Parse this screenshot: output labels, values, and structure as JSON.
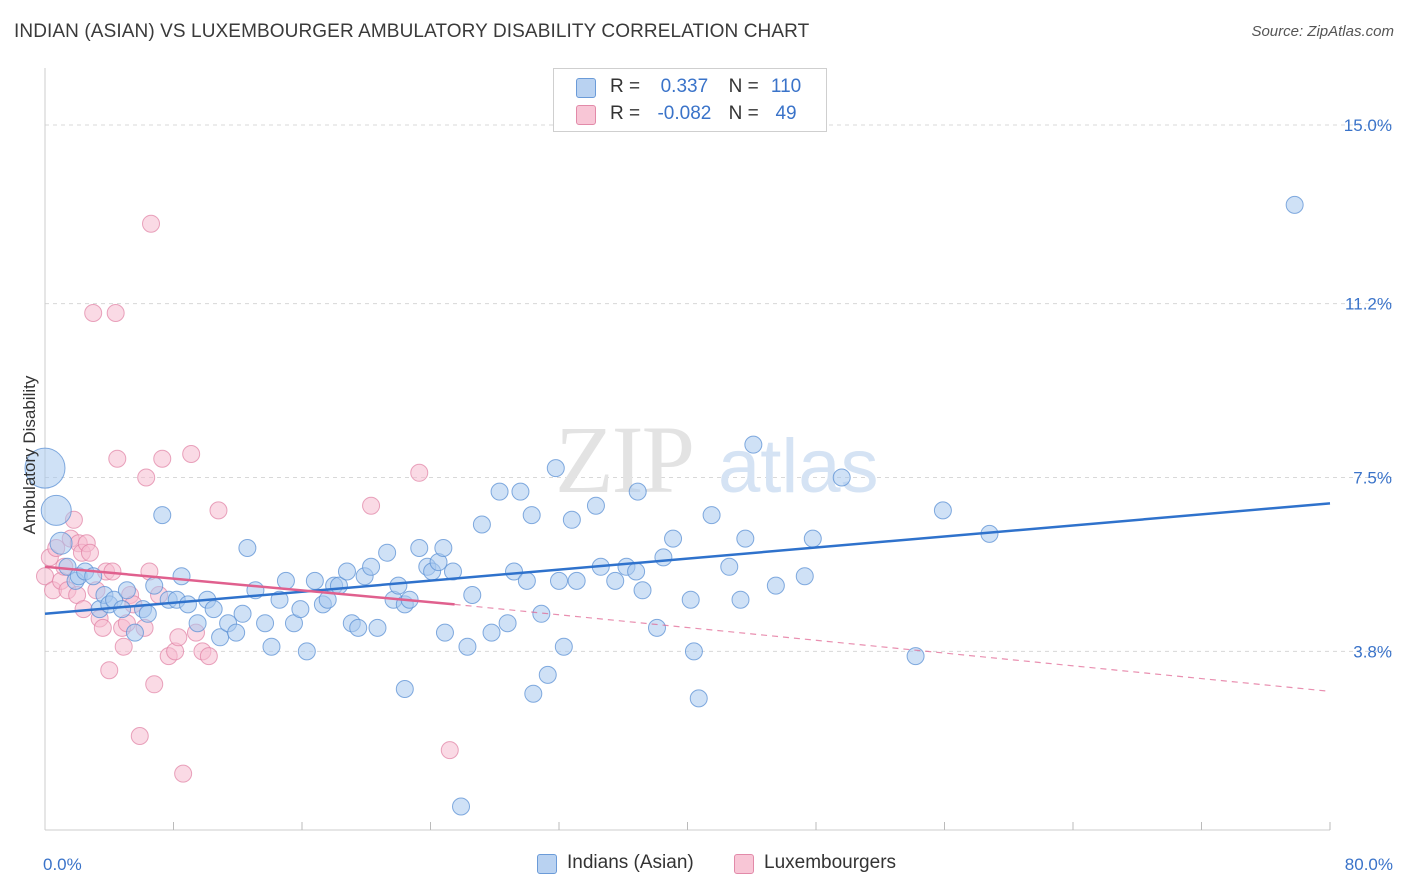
{
  "title": "INDIAN (ASIAN) VS LUXEMBOURGER AMBULATORY DISABILITY CORRELATION CHART",
  "source": "Source: ZipAtlas.com",
  "watermark": {
    "zip": "ZIP",
    "atlas": "atlas"
  },
  "legend": {
    "rows": [
      {
        "r_label": "R =",
        "r_value": "0.337",
        "n_label": "N =",
        "n_value": "110"
      },
      {
        "r_label": "R =",
        "r_value": "-0.082",
        "n_label": "N =",
        "n_value": "49"
      }
    ]
  },
  "bottom_legend": {
    "series1": "Indians (Asian)",
    "series2": "Luxembourgers"
  },
  "colors": {
    "blue_fill": "#a8c8ef",
    "blue_stroke": "#5b90d4",
    "blue_line": "#2f72cc",
    "pink_fill": "#f6bcd0",
    "pink_stroke": "#e07fa3",
    "pink_line": "#e0608e",
    "axis_text": "#3a73c9",
    "grid": "#d8d8d8"
  },
  "chart_data": {
    "type": "scatter",
    "title": "INDIAN (ASIAN) VS LUXEMBOURGER AMBULATORY DISABILITY CORRELATION CHART",
    "xlabel": "",
    "ylabel": "Ambulatory Disability",
    "xlim": [
      0,
      80
    ],
    "ylim": [
      0,
      16
    ],
    "x_tick_labels": [
      "0.0%",
      "80.0%"
    ],
    "y_ticks": [
      3.8,
      7.5,
      11.2,
      15.0
    ],
    "y_tick_labels": [
      "3.8%",
      "7.5%",
      "11.2%",
      "15.0%"
    ],
    "legend_position": "top-center",
    "series": [
      {
        "name": "Indians (Asian)",
        "r": 0.337,
        "n": 110,
        "trend": {
          "x0": 0,
          "y0": 4.6,
          "x1": 80,
          "y1": 6.95,
          "style": "solid"
        },
        "points": [
          [
            0,
            7.7
          ],
          [
            0.7,
            6.8
          ],
          [
            1.0,
            6.1
          ],
          [
            1.4,
            5.6
          ],
          [
            1.9,
            5.3
          ],
          [
            2.1,
            5.4
          ],
          [
            2.5,
            5.5
          ],
          [
            3.0,
            5.4
          ],
          [
            3.4,
            4.7
          ],
          [
            3.7,
            5.0
          ],
          [
            4.0,
            4.8
          ],
          [
            4.3,
            4.9
          ],
          [
            4.8,
            4.7
          ],
          [
            5.1,
            5.1
          ],
          [
            5.6,
            4.2
          ],
          [
            6.1,
            4.7
          ],
          [
            6.4,
            4.6
          ],
          [
            6.8,
            5.2
          ],
          [
            7.3,
            6.7
          ],
          [
            7.7,
            4.9
          ],
          [
            8.2,
            4.9
          ],
          [
            8.5,
            5.4
          ],
          [
            8.9,
            4.8
          ],
          [
            9.5,
            4.4
          ],
          [
            10.1,
            4.9
          ],
          [
            10.5,
            4.7
          ],
          [
            10.9,
            4.1
          ],
          [
            11.4,
            4.4
          ],
          [
            11.9,
            4.2
          ],
          [
            12.3,
            4.6
          ],
          [
            12.6,
            6.0
          ],
          [
            13.1,
            5.1
          ],
          [
            13.7,
            4.4
          ],
          [
            14.1,
            3.9
          ],
          [
            14.6,
            4.9
          ],
          [
            15.0,
            5.3
          ],
          [
            15.5,
            4.4
          ],
          [
            15.9,
            4.7
          ],
          [
            16.3,
            3.8
          ],
          [
            16.8,
            5.3
          ],
          [
            17.3,
            4.8
          ],
          [
            17.6,
            4.9
          ],
          [
            18.0,
            5.2
          ],
          [
            18.3,
            5.2
          ],
          [
            18.8,
            5.5
          ],
          [
            19.1,
            4.4
          ],
          [
            19.5,
            4.3
          ],
          [
            19.9,
            5.4
          ],
          [
            20.3,
            5.6
          ],
          [
            20.7,
            4.3
          ],
          [
            21.3,
            5.9
          ],
          [
            21.7,
            4.9
          ],
          [
            22.0,
            5.2
          ],
          [
            22.4,
            4.8
          ],
          [
            22.7,
            4.9
          ],
          [
            23.3,
            6.0
          ],
          [
            22.4,
            3.0
          ],
          [
            23.8,
            5.6
          ],
          [
            24.1,
            5.5
          ],
          [
            24.5,
            5.7
          ],
          [
            24.8,
            6.0
          ],
          [
            24.9,
            4.2
          ],
          [
            25.4,
            5.5
          ],
          [
            25.9,
            0.5
          ],
          [
            26.3,
            3.9
          ],
          [
            26.6,
            5.0
          ],
          [
            27.2,
            6.5
          ],
          [
            27.8,
            4.2
          ],
          [
            28.3,
            7.2
          ],
          [
            28.8,
            4.4
          ],
          [
            29.2,
            5.5
          ],
          [
            29.6,
            7.2
          ],
          [
            30.0,
            5.3
          ],
          [
            30.3,
            6.7
          ],
          [
            30.4,
            2.9
          ],
          [
            30.9,
            4.6
          ],
          [
            31.3,
            3.3
          ],
          [
            31.8,
            7.7
          ],
          [
            32.0,
            5.3
          ],
          [
            32.3,
            3.9
          ],
          [
            32.8,
            6.6
          ],
          [
            33.1,
            5.3
          ],
          [
            34.6,
            5.6
          ],
          [
            34.3,
            6.9
          ],
          [
            35.5,
            5.3
          ],
          [
            36.2,
            5.6
          ],
          [
            36.8,
            5.5
          ],
          [
            36.9,
            7.2
          ],
          [
            37.2,
            5.1
          ],
          [
            38.1,
            4.3
          ],
          [
            38.5,
            5.8
          ],
          [
            39.1,
            6.2
          ],
          [
            40.2,
            4.9
          ],
          [
            40.4,
            3.8
          ],
          [
            40.7,
            2.8
          ],
          [
            41.5,
            6.7
          ],
          [
            42.6,
            5.6
          ],
          [
            43.3,
            4.9
          ],
          [
            43.6,
            6.2
          ],
          [
            44.1,
            8.2
          ],
          [
            45.5,
            5.2
          ],
          [
            47.3,
            5.4
          ],
          [
            47.8,
            6.2
          ],
          [
            49.6,
            7.5
          ],
          [
            54.2,
            3.7
          ],
          [
            55.9,
            6.8
          ],
          [
            58.8,
            6.3
          ],
          [
            77.8,
            13.3
          ]
        ]
      },
      {
        "name": "Luxembourgers",
        "r": -0.082,
        "n": 49,
        "trend": {
          "x0": 0,
          "y0": 5.6,
          "x1": 25.5,
          "y1": 4.8,
          "style": "solid",
          "extension": {
            "x1": 80,
            "y1": 2.95,
            "style": "dashed"
          }
        },
        "points": [
          [
            0,
            5.4
          ],
          [
            0.3,
            5.8
          ],
          [
            0.5,
            5.1
          ],
          [
            0.7,
            6.0
          ],
          [
            1.0,
            5.3
          ],
          [
            1.2,
            5.6
          ],
          [
            1.4,
            5.1
          ],
          [
            1.6,
            6.2
          ],
          [
            1.8,
            6.6
          ],
          [
            2.0,
            5.0
          ],
          [
            2.1,
            6.1
          ],
          [
            2.3,
            5.9
          ],
          [
            2.4,
            4.7
          ],
          [
            2.6,
            6.1
          ],
          [
            2.8,
            5.9
          ],
          [
            3.0,
            11.0
          ],
          [
            3.2,
            5.1
          ],
          [
            3.4,
            4.5
          ],
          [
            3.6,
            4.3
          ],
          [
            3.8,
            5.5
          ],
          [
            4.0,
            3.4
          ],
          [
            4.2,
            5.5
          ],
          [
            4.4,
            11.0
          ],
          [
            4.5,
            7.9
          ],
          [
            4.8,
            4.3
          ],
          [
            4.9,
            3.9
          ],
          [
            5.1,
            4.4
          ],
          [
            5.3,
            5.0
          ],
          [
            5.5,
            4.8
          ],
          [
            5.9,
            2.0
          ],
          [
            6.2,
            4.3
          ],
          [
            6.3,
            7.5
          ],
          [
            6.5,
            5.5
          ],
          [
            6.8,
            3.1
          ],
          [
            7.1,
            5.0
          ],
          [
            6.6,
            12.9
          ],
          [
            7.3,
            7.9
          ],
          [
            7.7,
            3.7
          ],
          [
            8.1,
            3.8
          ],
          [
            8.3,
            4.1
          ],
          [
            8.6,
            1.2
          ],
          [
            9.1,
            8.0
          ],
          [
            9.4,
            4.2
          ],
          [
            9.8,
            3.8
          ],
          [
            10.2,
            3.7
          ],
          [
            10.8,
            6.8
          ],
          [
            20.3,
            6.9
          ],
          [
            23.3,
            7.6
          ],
          [
            25.2,
            1.7
          ]
        ]
      }
    ]
  }
}
